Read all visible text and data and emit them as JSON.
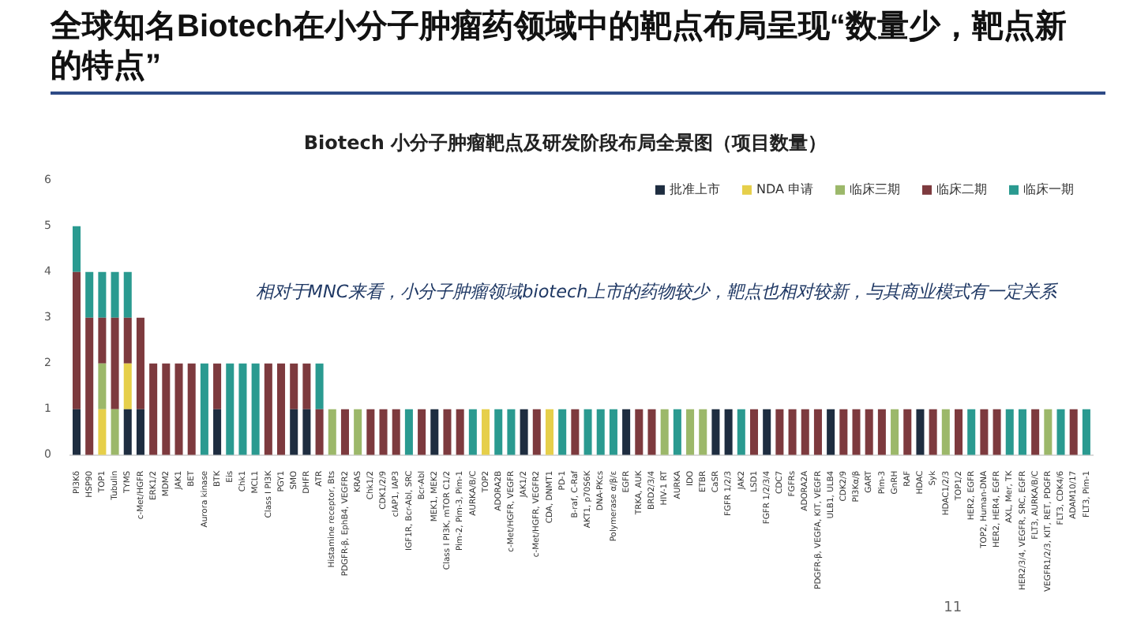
{
  "chart_data": {
    "type": "bar",
    "stacked": true,
    "title": "全球知名Biotech在小分子肿瘤药领域中的靶点布局呈现“数量少，靶点新的特点”",
    "subtitle": "Biotech 小分子肿瘤靶点及研发阶段布局全景图（项目数量）",
    "categories": [
      "PI3Kδ",
      "HSP90",
      "TOP1",
      "Tubulin",
      "TYMS",
      "c-Met/HGFR",
      "ERK1/2",
      "MDM2",
      "JAK1",
      "BET",
      "Aurora kinase",
      "BTK",
      "Eis",
      "Chk1",
      "MCL1",
      "Class I PI3K",
      "PGY1",
      "SMO",
      "DHFR",
      "ATR",
      "Histamine receptor, Bts",
      "PDGFR-β, EphB4, VEGFR2",
      "KRAS",
      "Chk1/2",
      "CDK1/2/9",
      "cIAP1, IAP3",
      "IGF1R, Bcr-Abl, SRC",
      "Bcr-Abl",
      "MEK1, MEK2",
      "Class I PI3K, mTOR C1/2",
      "Pim-2, Pim-3, Pim-1",
      "AURKA/B/C",
      "TOP2",
      "ADORA2B",
      "c-Met/HGFR, VEGFR",
      "JAK1/2",
      "c-Met/HGFR, VEGFR2",
      "CDA, DNMT1",
      "PD-1",
      "B-raf, C-Raf",
      "AKT1, p70S6K",
      "DNA-PKcs",
      "Polymerase α/β/ε",
      "EGFR",
      "TRKA, AUK",
      "BRD2/3/4",
      "HIV-1 RT",
      "AURKA",
      "IDO",
      "ETBR",
      "CaSR",
      "FGFR 1/2/3",
      "JAK2",
      "LSD1",
      "FGFR 1/2/3/4",
      "CDC7",
      "FGFRs",
      "ADORA2A",
      "PDGFR-β, VEGFA, KIT, VEGFR",
      "ULB1, ULB4",
      "CDK2/9",
      "PI3Kα/β",
      "GART",
      "Pim-3",
      "GnRH",
      "RAF",
      "HDAC",
      "Syk",
      "HDAC1/2/3",
      "TOP1/2",
      "HER2, EGFR",
      "TOP2, Human-DNA",
      "HER2, HER4, EGFR",
      "AXL, Mer, TK",
      "HER2/3/4, VEGFR, SRC, EGFR",
      "FLT3, AURKA/B/C",
      "VEGFR1/2/3, KIT, RET, PDGFR",
      "FLT3, CDK4/6",
      "ADAM10/17",
      "FLT3, Pim-1"
    ],
    "series": [
      {
        "name": "批准上市",
        "color": "#1e2d40",
        "values": [
          1,
          null,
          null,
          null,
          1,
          1,
          null,
          null,
          null,
          null,
          null,
          1,
          null,
          null,
          null,
          null,
          null,
          1,
          1,
          null,
          null,
          null,
          null,
          null,
          null,
          null,
          null,
          null,
          1,
          null,
          null,
          null,
          null,
          null,
          null,
          1,
          null,
          null,
          null,
          null,
          null,
          null,
          null,
          1,
          null,
          null,
          null,
          null,
          null,
          null,
          1,
          1,
          null,
          null,
          1,
          null,
          null,
          null,
          null,
          1,
          null,
          null,
          null,
          null,
          null,
          null,
          1,
          null,
          null,
          null,
          null,
          null,
          null,
          null,
          null,
          null,
          null,
          null,
          null,
          null
        ]
      },
      {
        "name": "NDA 申请",
        "color": "#e6cf4a",
        "values": [
          null,
          null,
          1,
          null,
          1,
          null,
          null,
          null,
          null,
          null,
          null,
          null,
          null,
          null,
          null,
          null,
          null,
          null,
          null,
          null,
          null,
          null,
          null,
          null,
          null,
          null,
          null,
          null,
          null,
          null,
          null,
          null,
          1,
          null,
          null,
          null,
          null,
          1,
          null,
          null,
          null,
          null,
          null,
          null,
          null,
          null,
          null,
          null,
          null,
          null,
          null,
          null,
          null,
          null,
          null,
          null,
          null,
          null,
          null,
          null,
          null,
          null,
          null,
          null,
          null,
          null,
          null,
          null,
          null,
          null,
          null,
          null,
          null,
          null,
          null,
          null,
          null,
          null,
          null,
          null
        ]
      },
      {
        "name": "临床三期",
        "color": "#9cb86a",
        "values": [
          null,
          null,
          1,
          1,
          null,
          null,
          null,
          null,
          null,
          null,
          null,
          null,
          null,
          null,
          null,
          null,
          null,
          null,
          null,
          null,
          1,
          null,
          1,
          null,
          null,
          null,
          null,
          null,
          null,
          null,
          null,
          null,
          null,
          null,
          null,
          null,
          null,
          null,
          null,
          null,
          null,
          null,
          null,
          null,
          null,
          null,
          1,
          null,
          1,
          1,
          null,
          null,
          null,
          null,
          null,
          null,
          null,
          null,
          null,
          null,
          null,
          null,
          null,
          null,
          1,
          null,
          null,
          null,
          1,
          null,
          null,
          null,
          null,
          null,
          null,
          null,
          1,
          null,
          null,
          null
        ]
      },
      {
        "name": "临床二期",
        "color": "#7d3a3e",
        "values": [
          3,
          3,
          1,
          2,
          1,
          2,
          2,
          2,
          2,
          2,
          null,
          1,
          null,
          null,
          null,
          2,
          2,
          1,
          1,
          1,
          null,
          1,
          null,
          1,
          1,
          1,
          null,
          1,
          null,
          1,
          1,
          null,
          null,
          null,
          null,
          null,
          1,
          null,
          null,
          1,
          null,
          null,
          null,
          null,
          1,
          1,
          null,
          null,
          null,
          null,
          null,
          null,
          null,
          1,
          null,
          1,
          1,
          1,
          1,
          null,
          1,
          1,
          1,
          1,
          null,
          1,
          null,
          1,
          null,
          1,
          null,
          1,
          1,
          null,
          null,
          1,
          null,
          null,
          1,
          null
        ]
      },
      {
        "name": "临床一期",
        "color": "#2a9a90",
        "values": [
          1,
          1,
          1,
          1,
          1,
          null,
          null,
          null,
          null,
          null,
          2,
          null,
          2,
          2,
          2,
          null,
          null,
          null,
          null,
          1,
          null,
          null,
          null,
          null,
          null,
          null,
          1,
          null,
          null,
          null,
          null,
          1,
          null,
          1,
          1,
          null,
          null,
          null,
          1,
          null,
          1,
          1,
          1,
          null,
          null,
          null,
          null,
          1,
          null,
          null,
          null,
          null,
          1,
          null,
          null,
          null,
          null,
          null,
          null,
          null,
          null,
          null,
          null,
          null,
          null,
          null,
          null,
          null,
          null,
          null,
          1,
          null,
          null,
          1,
          1,
          null,
          null,
          1,
          null,
          1
        ]
      }
    ],
    "ylim": [
      0,
      6
    ],
    "yticks": [
      0,
      1,
      2,
      3,
      4,
      5,
      6
    ],
    "legend": "top right",
    "annotations": [
      "相对于MNC来看，小分子肿瘤领域biotech上市的药物较少，靶点也相对较新，与其商业模式有一定关系",
      "11"
    ]
  }
}
